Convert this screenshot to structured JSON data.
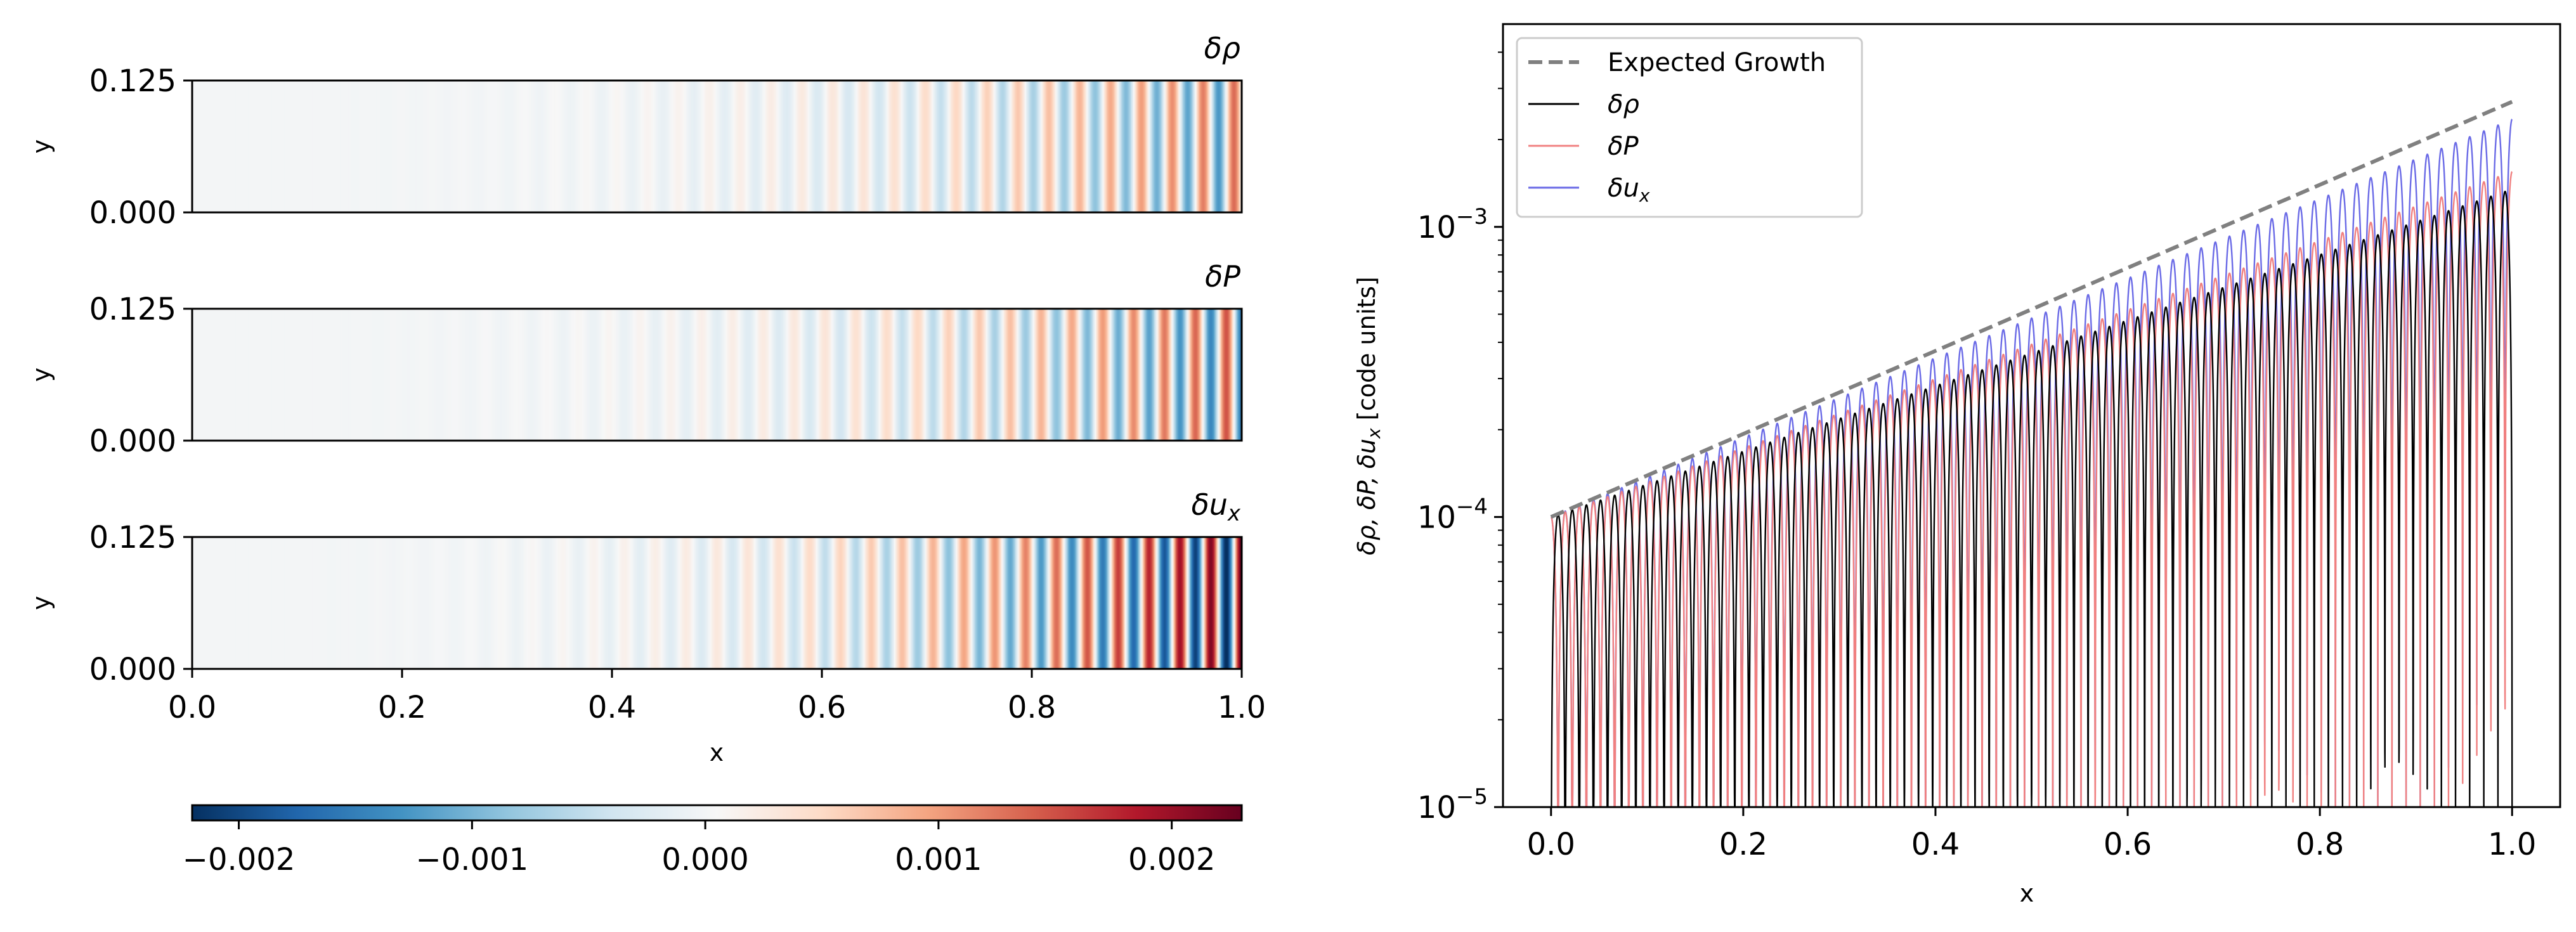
{
  "chart_data": [
    {
      "type": "heatmap",
      "panels": [
        {
          "title": "δρ",
          "field": "density_perturbation",
          "amplitude": 0.00135,
          "phase_offset": 0.25
        },
        {
          "title": "δP",
          "field": "pressure_perturbation",
          "amplitude": 0.00155,
          "phase_offset": 0.5
        },
        {
          "title": "δu",
          "title_sub": "x",
          "field": "velocity_perturbation",
          "amplitude": 0.00235,
          "phase_offset": 0.0
        }
      ],
      "xlabel": "x",
      "ylabel": "y",
      "xlim": [
        0.0,
        1.0
      ],
      "ylim": [
        0.0,
        0.125
      ],
      "xticks": [
        "0.0",
        "0.2",
        "0.4",
        "0.6",
        "0.8",
        "1.0"
      ],
      "yticks": [
        "0.000",
        "0.125"
      ],
      "wave_cycles": 34,
      "colorbar": {
        "cmap": "RdBu_r",
        "range": [
          -0.0022,
          0.0023
        ],
        "ticks": [
          -0.002,
          -0.001,
          0.0,
          0.001,
          0.002
        ],
        "tick_labels": [
          "−0.002",
          "−0.001",
          "0.000",
          "0.001",
          "0.002"
        ]
      }
    },
    {
      "type": "line",
      "yscale": "log",
      "xlabel": "x",
      "ylabel": "δρ, δP, δu",
      "ylabel_sub": "x",
      "ylabel_suffix": " [code units]",
      "xlim": [
        -0.05,
        1.05
      ],
      "ylim": [
        1e-05,
        0.005
      ],
      "xticks": [
        "0.0",
        "0.2",
        "0.4",
        "0.6",
        "0.8",
        "1.0"
      ],
      "ytick_values": [
        1e-05,
        0.0001,
        0.001
      ],
      "ytick_bases": [
        "10",
        "10",
        "10"
      ],
      "ytick_exps": [
        "−5",
        "−4",
        "−3"
      ],
      "wave_cycles": 34,
      "growth_start": 0.0001,
      "growth_end": 0.0027,
      "legend": {
        "position": "upper left",
        "entries": [
          "Expected Growth",
          "δρ",
          "δP",
          "δu"
        ],
        "last_sub": "x"
      },
      "series": [
        {
          "name": "Expected Growth",
          "style": "dashed",
          "color": "#808080",
          "start": 0.0001,
          "end": 0.0027
        },
        {
          "name": "δρ",
          "color": "#000000",
          "start": 0.0001,
          "end": 0.00135,
          "phase_offset": 0.25
        },
        {
          "name": "δP",
          "color": "#f08080",
          "start": 0.0001,
          "end": 0.00155,
          "phase_offset": 0.5
        },
        {
          "name": "δu_x",
          "color": "#6a6ae6",
          "start": 0.0001,
          "end": 0.00235,
          "phase_offset": 0.0
        }
      ]
    }
  ]
}
